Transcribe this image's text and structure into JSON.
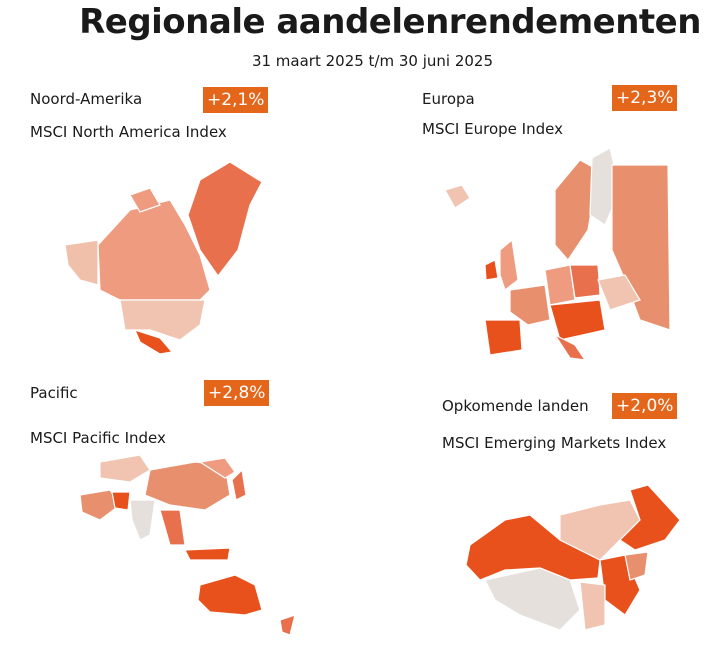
{
  "header": {
    "title": "Regionale aandelenrendementen",
    "subtitle": "31 maart 2025 t/m 30 juni 2025"
  },
  "panels": [
    {
      "region": "Noord-Amerika",
      "return": "+2,1%",
      "index": "MSCI North America Index"
    },
    {
      "region": "Europa",
      "return": "+2,3%",
      "index": "MSCI Europe Index"
    },
    {
      "region": "Pacific",
      "return": "+2,8%",
      "index": "MSCI Pacific Index"
    },
    {
      "region": "Opkomende landen",
      "return": "+2,0%",
      "index": "MSCI Emerging Markets Index"
    }
  ]
}
